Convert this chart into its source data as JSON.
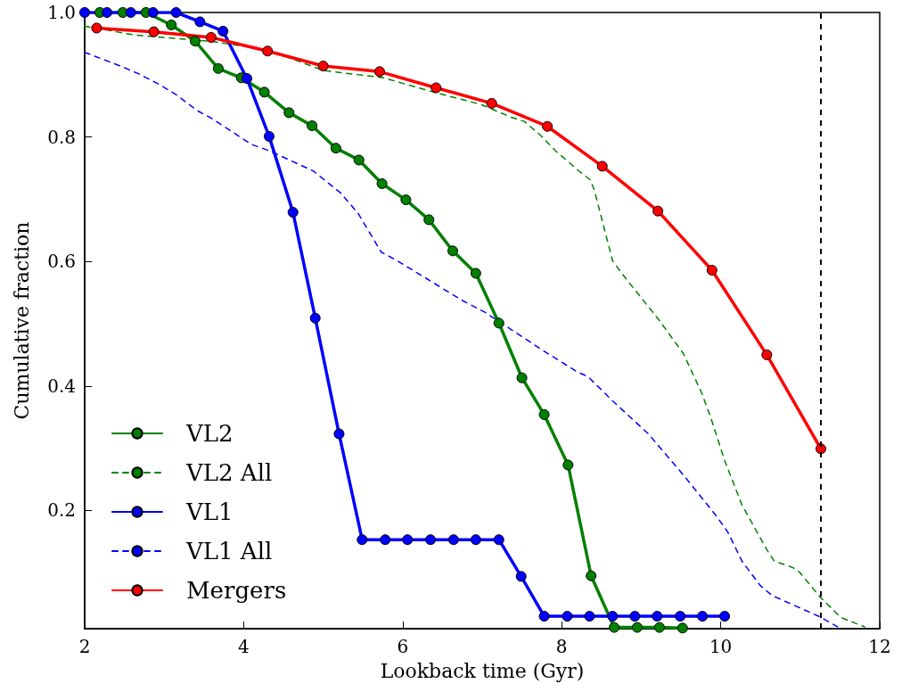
{
  "chart_data": {
    "type": "line",
    "xlabel": "Lookback time (Gyr)",
    "ylabel": "Cumulative fraction",
    "xlim": [
      2,
      12
    ],
    "xticks": [
      2,
      4,
      6,
      8,
      10,
      12
    ],
    "ylim": [
      0.01,
      1
    ],
    "yticks": [
      0.2,
      0.4,
      0.6,
      0.8,
      {
        "value": 1,
        "label": "1.0"
      }
    ],
    "grid": false,
    "legend": "bottom left",
    "ref_lines": [
      {
        "axis": "x",
        "value": 11.26,
        "color": "#000000",
        "line_style": "dashed"
      }
    ],
    "series": [
      {
        "name": "VL2",
        "color": "#008000",
        "marker": "circle",
        "line_style": "solid",
        "x": [
          2.19,
          2.48,
          2.77,
          3.09,
          3.39,
          3.68,
          3.97,
          4.26,
          4.57,
          4.86,
          5.16,
          5.45,
          5.74,
          6.04,
          6.33,
          6.63,
          6.92,
          7.21,
          7.5,
          7.78,
          8.08,
          8.37,
          8.66,
          8.95,
          9.23,
          9.52
        ],
        "values": [
          1.0,
          1.0,
          1.0,
          0.98,
          0.954,
          0.91,
          0.895,
          0.872,
          0.839,
          0.818,
          0.782,
          0.763,
          0.725,
          0.699,
          0.667,
          0.617,
          0.581,
          0.501,
          0.413,
          0.354,
          0.273,
          0.095,
          0.012,
          0.012,
          0.012,
          0.011
        ]
      },
      {
        "name": "VL2 All",
        "color": "#008000",
        "marker": "none",
        "line_style": "dashed",
        "x": [
          2.0,
          2.62,
          3.63,
          4.3,
          5.0,
          5.76,
          6.42,
          6.99,
          7.12,
          7.36,
          7.53,
          7.74,
          7.92,
          8.22,
          8.36,
          8.41,
          8.64,
          8.78,
          9.23,
          9.53,
          9.76,
          9.87,
          10.05,
          10.27,
          10.58,
          10.67,
          10.91,
          10.99,
          11.25,
          11.51,
          11.81
        ],
        "values": [
          0.978,
          0.964,
          0.953,
          0.94,
          0.907,
          0.895,
          0.871,
          0.852,
          0.845,
          0.832,
          0.825,
          0.802,
          0.778,
          0.745,
          0.731,
          0.715,
          0.601,
          0.577,
          0.505,
          0.452,
          0.389,
          0.351,
          0.28,
          0.208,
          0.137,
          0.119,
          0.108,
          0.101,
          0.061,
          0.028,
          0.013
        ]
      },
      {
        "name": "VL1",
        "color": "#0000ff",
        "marker": "circle",
        "line_style": "solid",
        "x": [
          2.0,
          2.28,
          2.58,
          2.86,
          3.15,
          3.45,
          3.74,
          4.04,
          4.32,
          4.62,
          4.9,
          5.2,
          5.49,
          5.78,
          6.06,
          6.35,
          6.64,
          6.92,
          7.21,
          7.49,
          7.78,
          8.07,
          8.35,
          8.64,
          8.92,
          9.2,
          9.49,
          9.77,
          10.05
        ],
        "values": [
          1.0,
          1.0,
          1.0,
          1.0,
          1.0,
          0.985,
          0.97,
          0.894,
          0.801,
          0.679,
          0.509,
          0.323,
          0.153,
          0.153,
          0.153,
          0.153,
          0.153,
          0.153,
          0.153,
          0.094,
          0.03,
          0.03,
          0.03,
          0.03,
          0.03,
          0.03,
          0.03,
          0.03,
          0.03
        ]
      },
      {
        "name": "VL1 All",
        "color": "#0000ff",
        "marker": "none",
        "line_style": "dashed",
        "x": [
          2.0,
          2.45,
          2.67,
          2.93,
          3.15,
          3.42,
          3.57,
          4.1,
          4.32,
          4.61,
          4.88,
          5.22,
          5.44,
          5.73,
          5.92,
          6.37,
          6.74,
          7.04,
          7.36,
          7.74,
          8.19,
          8.33,
          8.64,
          9.09,
          9.53,
          9.94,
          10.09,
          10.27,
          10.5,
          10.65,
          10.95,
          11.25,
          11.47
        ],
        "values": [
          0.936,
          0.914,
          0.902,
          0.885,
          0.868,
          0.842,
          0.832,
          0.788,
          0.778,
          0.761,
          0.745,
          0.71,
          0.677,
          0.615,
          0.602,
          0.567,
          0.538,
          0.518,
          0.491,
          0.459,
          0.423,
          0.415,
          0.376,
          0.323,
          0.257,
          0.192,
          0.165,
          0.118,
          0.079,
          0.063,
          0.046,
          0.029,
          0.013
        ]
      },
      {
        "name": "Mergers",
        "color": "#ff0000",
        "marker": "circle",
        "line_style": "solid",
        "x": [
          2.15,
          2.87,
          3.59,
          4.3,
          5.0,
          5.71,
          6.42,
          7.12,
          7.82,
          8.51,
          9.21,
          9.89,
          10.58,
          11.26
        ],
        "values": [
          0.975,
          0.969,
          0.96,
          0.938,
          0.914,
          0.905,
          0.879,
          0.854,
          0.817,
          0.753,
          0.681,
          0.586,
          0.45,
          0.299
        ]
      }
    ]
  }
}
